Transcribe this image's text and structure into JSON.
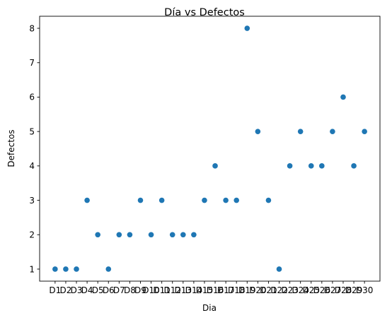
{
  "chart_data": {
    "type": "scatter",
    "title": "Día vs Defectos",
    "xlabel": "Dia",
    "ylabel": "Defectos",
    "categories": [
      "D1",
      "D2",
      "D3",
      "D4",
      "D5",
      "D6",
      "D7",
      "D8",
      "D9",
      "D10",
      "D11",
      "D12",
      "D13",
      "D14",
      "D15",
      "D16",
      "D17",
      "D18",
      "D19",
      "D20",
      "D21",
      "D22",
      "D23",
      "D24",
      "D25",
      "D26",
      "D27",
      "D28",
      "D29",
      "D30"
    ],
    "values": [
      1,
      1,
      1,
      3,
      2,
      1,
      2,
      2,
      3,
      2,
      3,
      2,
      2,
      2,
      3,
      4,
      3,
      3,
      8,
      5,
      3,
      1,
      4,
      5,
      4,
      4,
      5,
      6,
      4,
      5
    ],
    "yticks": [
      1,
      2,
      3,
      4,
      5,
      6,
      7,
      8
    ],
    "ylim": [
      0.65,
      8.35
    ],
    "grid": false,
    "marker_color": "#1f77b4"
  }
}
